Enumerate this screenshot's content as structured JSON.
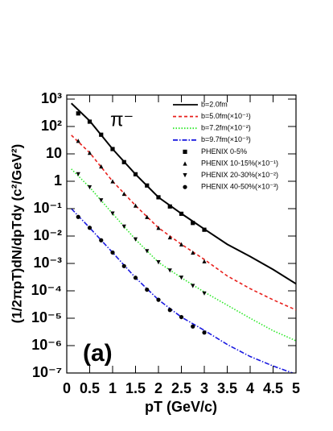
{
  "chart_data": {
    "type": "line",
    "annotations": {
      "particle": "π⁻",
      "panel": "(a)"
    },
    "x_label": "pT (GeV/c)",
    "y_label": "(1/2πpT)dN/dpTdy (c²/GeV²)",
    "xlim": [
      0,
      5
    ],
    "ylim": [
      1e-07,
      1000
    ],
    "ylog": true,
    "xticks": [
      0,
      0.5,
      1,
      1.5,
      2,
      2.5,
      3,
      3.5,
      4,
      4.5,
      5
    ],
    "yticks": [
      {
        "value": 1000,
        "label": "10³"
      },
      {
        "value": 100,
        "label": "10²"
      },
      10,
      1,
      {
        "value": 0.1,
        "label": "10⁻¹"
      },
      {
        "value": 0.01,
        "label": "10⁻²"
      },
      {
        "value": 0.001,
        "label": "10⁻³"
      },
      {
        "value": 0.0001,
        "label": "10⁻⁴"
      },
      {
        "value": 1e-05,
        "label": "10⁻⁵"
      },
      {
        "value": 1e-06,
        "label": "10⁻⁶"
      },
      {
        "value": 1e-07,
        "label": "10⁻⁷"
      }
    ],
    "series": [
      {
        "name": "b=2.0fm",
        "color": "#000000",
        "style": "solid",
        "x": [
          0.1,
          0.5,
          1,
          1.5,
          2,
          2.5,
          3,
          3.5,
          4,
          4.5,
          5
        ],
        "values": [
          700,
          160,
          15,
          1.8,
          0.26,
          0.066,
          0.018,
          0.005,
          0.0018,
          0.0006,
          0.00018
        ]
      },
      {
        "name": "b=5.0fm(×10⁻¹)",
        "color": "#e8201c",
        "style": "dashed",
        "x": [
          0.1,
          0.5,
          1,
          1.5,
          2,
          2.5,
          3,
          3.5,
          4,
          4.5,
          5
        ],
        "values": [
          48,
          11,
          1,
          0.13,
          0.02,
          0.005,
          0.0014,
          0.00035,
          0.00012,
          4.7e-05,
          2e-05
        ]
      },
      {
        "name": "b=7.2fm(×10⁻²)",
        "color": "#2ee82a",
        "style": "dotted",
        "x": [
          0.1,
          0.5,
          1,
          1.5,
          2,
          2.5,
          3,
          3.5,
          4,
          4.5,
          5
        ],
        "values": [
          2.8,
          0.6,
          0.066,
          0.0075,
          0.0011,
          0.0003,
          9e-05,
          3e-05,
          1e-05,
          3.5e-06,
          1.5e-06
        ]
      },
      {
        "name": "b=9.7fm(×10⁻³)",
        "color": "#1a1ae0",
        "style": "dashdot",
        "x": [
          0.1,
          0.5,
          1,
          1.5,
          2,
          2.5,
          3,
          3.5,
          4,
          4.5,
          5
        ],
        "values": [
          0.1,
          0.02,
          0.0025,
          0.0003,
          4.7e-05,
          1.1e-05,
          3.6e-06,
          1.1e-06,
          4e-07,
          1.8e-07,
          9e-08
        ]
      },
      {
        "name": "PHENIX 0-5%",
        "color": "#000000",
        "marker": "square",
        "x": [
          0.25,
          0.5,
          0.75,
          1,
          1.25,
          1.5,
          1.75,
          2,
          2.25,
          2.5,
          2.75,
          3
        ],
        "values": [
          300,
          150,
          50,
          15,
          5,
          1.8,
          0.7,
          0.26,
          0.12,
          0.065,
          0.03,
          0.017
        ]
      },
      {
        "name": "PHENIX 10-15%(×10⁻¹)",
        "color": "#000000",
        "marker": "triangle",
        "x": [
          0.25,
          0.5,
          0.75,
          1,
          1.25,
          1.5,
          1.75,
          2,
          2.25,
          2.5,
          2.75,
          3
        ],
        "values": [
          30,
          11,
          3.5,
          1,
          0.35,
          0.13,
          0.05,
          0.02,
          0.009,
          0.005,
          0.0025,
          0.0012
        ]
      },
      {
        "name": "PHENIX 20-30%(×10⁻²)",
        "color": "#000000",
        "marker": "triangle-down",
        "x": [
          0.25,
          0.5,
          0.75,
          1,
          1.25,
          1.5,
          1.75,
          2,
          2.25,
          2.5,
          2.75,
          3
        ],
        "values": [
          1.8,
          0.6,
          0.2,
          0.066,
          0.022,
          0.0075,
          0.0028,
          0.0011,
          0.00055,
          0.0003,
          0.00015,
          8e-05
        ]
      },
      {
        "name": "PHENIX 40-50%(×10⁻³)",
        "color": "#000000",
        "marker": "circle",
        "x": [
          0.25,
          0.5,
          0.75,
          1,
          1.25,
          1.5,
          1.75,
          2,
          2.25,
          2.5,
          2.75,
          3
        ],
        "values": [
          0.05,
          0.02,
          0.007,
          0.0025,
          0.0008,
          0.0003,
          0.00011,
          4.7e-05,
          2e-05,
          1.1e-05,
          5e-06,
          3e-06
        ]
      }
    ]
  }
}
